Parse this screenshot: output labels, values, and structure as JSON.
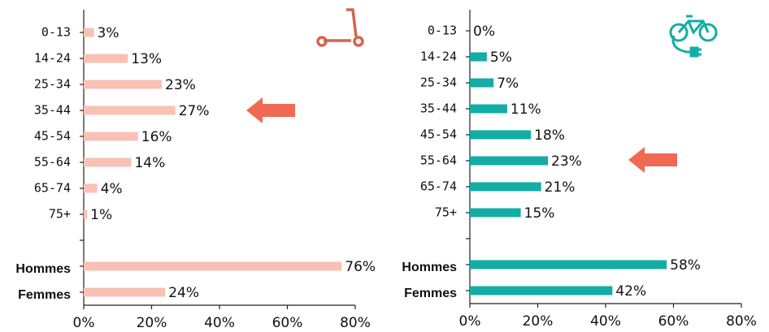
{
  "chart_data": [
    {
      "type": "bar",
      "orientation": "horizontal",
      "color": "#f8c1b5",
      "categories": [
        "0-13",
        "14-24",
        "25-34",
        "35-44",
        "45-54",
        "55-64",
        "65-74",
        "75+",
        null,
        "Hommes",
        "Femmes"
      ],
      "values": [
        3,
        13,
        23,
        27,
        16,
        14,
        4,
        1,
        null,
        76,
        24
      ],
      "value_labels": [
        "3%",
        "13%",
        "23%",
        "27%",
        "16%",
        "14%",
        "4%",
        "1%",
        null,
        "76%",
        "24%"
      ],
      "xlim": [
        0,
        80
      ],
      "xticks": [
        {
          "value": 0,
          "label": "0%"
        },
        {
          "value": 20,
          "label": "20%"
        },
        {
          "value": 40,
          "label": "40%"
        },
        {
          "value": 60,
          "label": "60%"
        },
        {
          "value": 80,
          "label": "80%"
        }
      ]
    },
    {
      "type": "bar",
      "orientation": "horizontal",
      "color": "#13ada6",
      "categories": [
        "0-13",
        "14-24",
        "25-34",
        "35-44",
        "45-54",
        "55-64",
        "65-74",
        "75+",
        null,
        "Hommes",
        "Femmes"
      ],
      "values": [
        0,
        5,
        7,
        11,
        18,
        23,
        21,
        15,
        null,
        58,
        42
      ],
      "value_labels": [
        "0%",
        "5%",
        "7%",
        "11%",
        "18%",
        "23%",
        "21%",
        "15%",
        null,
        "58%",
        "42%"
      ],
      "xlim": [
        0,
        80
      ],
      "xticks": [
        {
          "value": 0,
          "label": "0%"
        },
        {
          "value": 20,
          "label": "20%"
        },
        {
          "value": 40,
          "label": "40%"
        },
        {
          "value": 60,
          "label": "60%"
        },
        {
          "value": 80,
          "label": "80%"
        }
      ]
    }
  ]
}
